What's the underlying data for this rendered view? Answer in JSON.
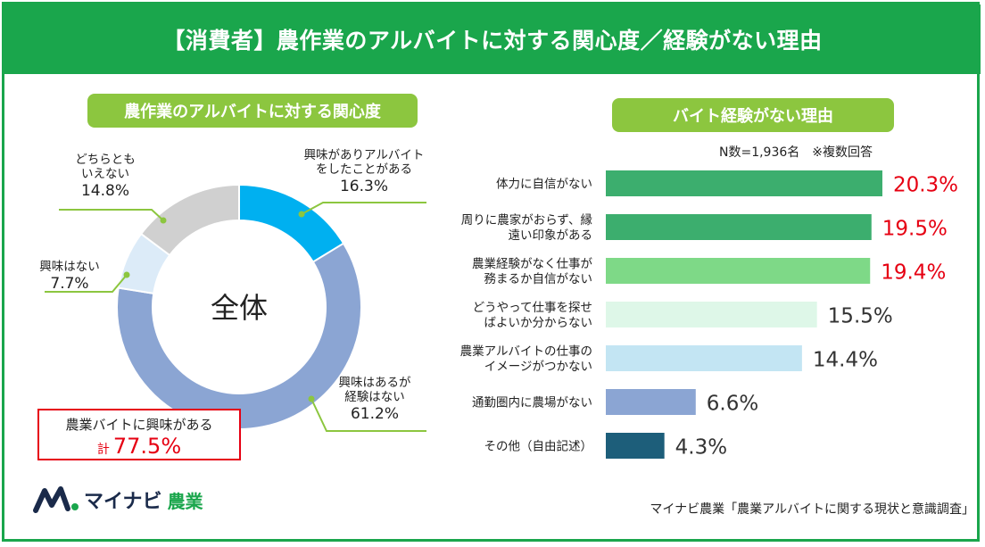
{
  "header": {
    "title": "【消費者】農作業のアルバイトに対する関心度／経験がない理由"
  },
  "left_panel": {
    "heading": "農作業のアルバイトに対する関心度",
    "center_label": "全体",
    "callout": {
      "line1": "農業バイトに興味がある",
      "prefix": "計",
      "value": "77.5%"
    }
  },
  "right_panel": {
    "heading": "バイト経験がない理由",
    "sample_note": "N数=1,936名　※複数回答"
  },
  "footer": {
    "credit": "マイナビ農業「農業アルバイトに関する現状と意識調査」",
    "logo_text": "マイナビ",
    "logo_sub": "農業"
  },
  "colors": {
    "brand_green": "#1aa64c",
    "pill_green": "#8cc63f",
    "highlight_red": "#e60012",
    "value_gray": "#333333"
  },
  "chart_data": [
    {
      "type": "pie",
      "style": "donut",
      "categories": [
        "興味がありアルバイトをしたことがある",
        "興味はあるが経験はない",
        "興味はない",
        "どちらともいえない"
      ],
      "labels": [
        [
          "興味がありアルバイト",
          "をしたことがある"
        ],
        [
          "興味はあるが",
          "経験はない"
        ],
        [
          "興味はない"
        ],
        [
          "どちらとも",
          "いえない"
        ]
      ],
      "values": [
        16.3,
        61.2,
        7.7,
        14.8
      ],
      "value_labels": [
        "16.3%",
        "61.2%",
        "7.7%",
        "14.8%"
      ],
      "colors": [
        "#00b0f0",
        "#8ba5d3",
        "#dcebf8",
        "#d0d0d0"
      ]
    },
    {
      "type": "bar",
      "orientation": "horizontal",
      "categories": [
        [
          "体力に自信がない"
        ],
        [
          "周りに農家がおらず、縁",
          "遠い印象がある"
        ],
        [
          "農業経験がなく仕事が",
          "務まるか自信がない"
        ],
        [
          "どうやって仕事を探せ",
          "ばよいか分からない"
        ],
        [
          "農業アルバイトの仕事の",
          "イメージがつかない"
        ],
        [
          "通勤圏内に農場がない"
        ],
        [
          "その他（自由記述）"
        ]
      ],
      "values": [
        20.3,
        19.5,
        19.4,
        15.5,
        14.4,
        6.6,
        4.3
      ],
      "value_labels": [
        "20.3%",
        "19.5%",
        "19.4%",
        "15.5%",
        "14.4%",
        "6.6%",
        "4.3%"
      ],
      "colors": [
        "#3cae6e",
        "#3cae6e",
        "#7ed987",
        "#def7e8",
        "#c3e5f3",
        "#8ba5d3",
        "#1d5e7a"
      ],
      "highlight": [
        true,
        true,
        true,
        false,
        false,
        false,
        false
      ]
    }
  ]
}
